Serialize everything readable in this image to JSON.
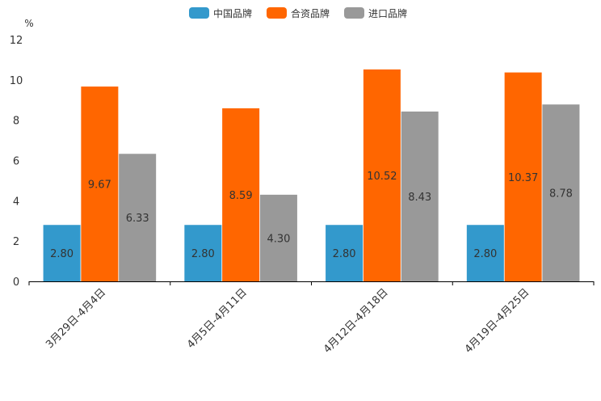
{
  "chart_data": {
    "type": "bar",
    "title": "",
    "xlabel": "",
    "ylabel": "%",
    "ylim": [
      0,
      12
    ],
    "yticks": [
      "0",
      "2",
      "4",
      "6",
      "8",
      "10",
      "12"
    ],
    "grid": false,
    "legend_position": "top-center",
    "categories": [
      "3月29日-4月4日",
      "4月5日-4月11日",
      "4月12日-4月18日",
      "4月19日-4月25日"
    ],
    "series": [
      {
        "name": "中国品牌",
        "color": "#3399cc",
        "values": [
          2.8,
          2.8,
          2.8,
          2.8
        ],
        "labels": [
          "2.80",
          "2.80",
          "2.80",
          "2.80"
        ]
      },
      {
        "name": "合资品牌",
        "color": "#ff6600",
        "values": [
          9.67,
          8.59,
          10.52,
          10.37
        ],
        "labels": [
          "9.67",
          "8.59",
          "10.52",
          "10.37"
        ]
      },
      {
        "name": "进口品牌",
        "color": "#999999",
        "values": [
          6.33,
          4.3,
          8.43,
          8.78
        ],
        "labels": [
          "6.33",
          "4.30",
          "8.43",
          "8.78"
        ]
      }
    ]
  }
}
